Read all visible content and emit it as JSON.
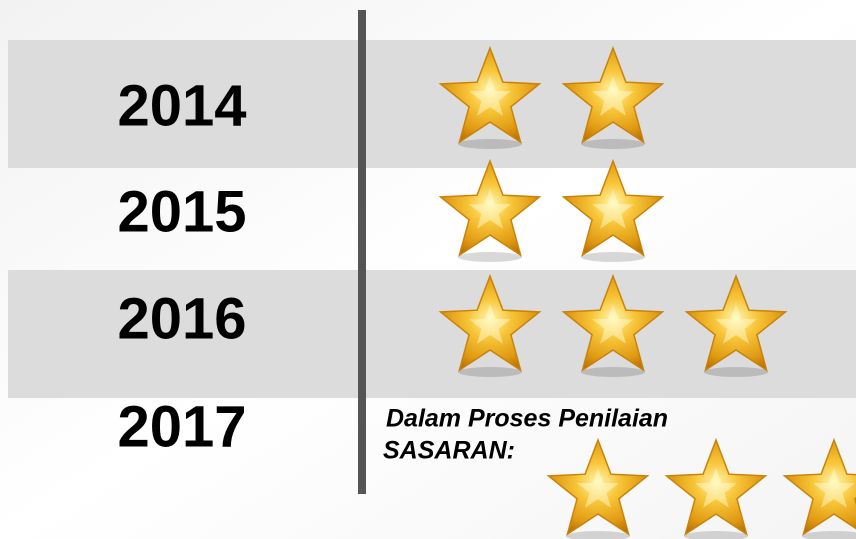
{
  "rows": [
    {
      "year": "2014",
      "stars": 2
    },
    {
      "year": "2015",
      "stars": 2
    },
    {
      "year": "2016",
      "stars": 3
    },
    {
      "year": "2017",
      "status": "Dalam Proses Penilaian",
      "target_label": "SASARAN:",
      "target_stars": 3
    }
  ]
}
